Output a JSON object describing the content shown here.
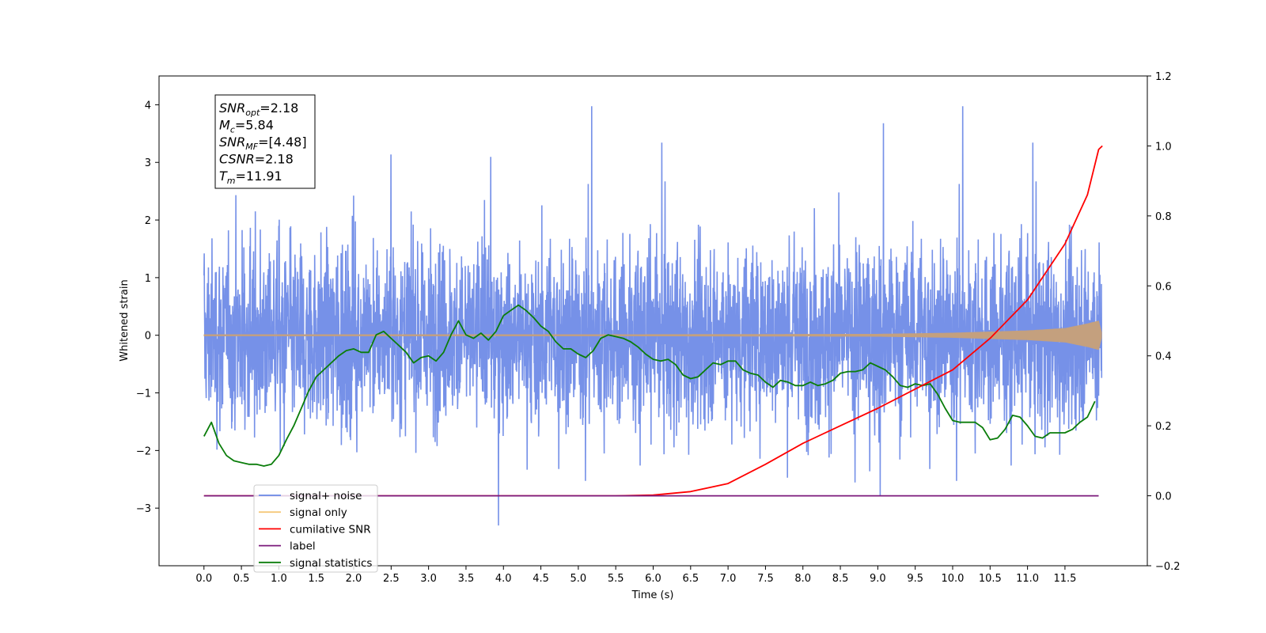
{
  "chart_data": {
    "type": "line",
    "xlabel": "Time (s)",
    "ylabel": "Whitened strain",
    "xlim": [
      -0.6,
      12.6
    ],
    "ylim": [
      -4.0,
      4.5
    ],
    "y2lim": [
      -0.2,
      1.2
    ],
    "x_ticks": [
      "0.0",
      "0.5",
      "1.0",
      "1.5",
      "2.0",
      "2.5",
      "3.0",
      "3.5",
      "4.0",
      "4.5",
      "5.0",
      "5.5",
      "6.0",
      "6.5",
      "7.0",
      "7.5",
      "8.0",
      "8.5",
      "9.0",
      "9.5",
      "10.0",
      "10.5",
      "11.0",
      "11.5"
    ],
    "y_ticks": [
      "−3",
      "−2",
      "−1",
      "0",
      "1",
      "2",
      "3",
      "4"
    ],
    "y2_ticks": [
      "−0.2",
      "0.0",
      "0.2",
      "0.4",
      "0.6",
      "0.8",
      "1.0",
      "1.2"
    ],
    "legend_position": "lower-left",
    "grid": false,
    "series": [
      {
        "name": "signal+ noise",
        "axis": "left",
        "color": "#6a88e6",
        "note_values": "dense noise roughly within [-2.3, 2.3] with spikes up to 4.1 and down to -3.6 over t=0..11.99"
      },
      {
        "name": "signal only",
        "axis": "left",
        "color": "#f5c87a",
        "x": [
          0,
          9.0,
          10.0,
          11.0,
          11.5,
          11.8,
          11.95,
          12.0
        ],
        "envelope": [
          0.0,
          0.02,
          0.04,
          0.08,
          0.12,
          0.2,
          0.25,
          0.0
        ]
      },
      {
        "name": "cumilative SNR",
        "axis": "right",
        "color": "#ff0000",
        "x": [
          0,
          5.5,
          6.0,
          6.5,
          7.0,
          7.5,
          8.0,
          8.5,
          9.0,
          9.5,
          10.0,
          10.5,
          11.0,
          11.5,
          11.8,
          11.95,
          12.0
        ],
        "values": [
          0,
          0,
          0.002,
          0.012,
          0.035,
          0.09,
          0.15,
          0.2,
          0.25,
          0.305,
          0.36,
          0.45,
          0.56,
          0.72,
          0.86,
          0.99,
          1.0
        ]
      },
      {
        "name": "label",
        "axis": "right",
        "color": "#7b1a7b",
        "x": [
          0,
          11.95
        ],
        "values": [
          0,
          0
        ]
      },
      {
        "name": "signal statistics",
        "axis": "right",
        "color": "#0a7d0a",
        "x": [
          0,
          0.1,
          0.2,
          0.3,
          0.4,
          0.5,
          0.6,
          0.7,
          0.8,
          0.9,
          1.0,
          1.1,
          1.2,
          1.3,
          1.4,
          1.5,
          1.6,
          1.7,
          1.8,
          1.9,
          2.0,
          2.1,
          2.2,
          2.3,
          2.4,
          2.5,
          2.6,
          2.7,
          2.8,
          2.9,
          3.0,
          3.1,
          3.2,
          3.3,
          3.4,
          3.5,
          3.6,
          3.7,
          3.8,
          3.9,
          4.0,
          4.1,
          4.2,
          4.3,
          4.4,
          4.5,
          4.6,
          4.7,
          4.8,
          4.9,
          5.0,
          5.1,
          5.2,
          5.3,
          5.4,
          5.5,
          5.6,
          5.7,
          5.8,
          5.9,
          6.0,
          6.1,
          6.2,
          6.3,
          6.4,
          6.5,
          6.6,
          6.7,
          6.8,
          6.9,
          7.0,
          7.1,
          7.2,
          7.3,
          7.4,
          7.5,
          7.6,
          7.7,
          7.8,
          7.9,
          8.0,
          8.1,
          8.2,
          8.3,
          8.4,
          8.5,
          8.6,
          8.7,
          8.8,
          8.9,
          9.0,
          9.1,
          9.2,
          9.3,
          9.4,
          9.5,
          9.6,
          9.7,
          9.8,
          9.9,
          10.0,
          10.1,
          10.2,
          10.3,
          10.4,
          10.5,
          10.6,
          10.7,
          10.8,
          10.9,
          11.0,
          11.1,
          11.2,
          11.3,
          11.4,
          11.5,
          11.6,
          11.7,
          11.8,
          11.9
        ],
        "values": [
          0.17,
          0.21,
          0.15,
          0.115,
          0.1,
          0.095,
          0.09,
          0.09,
          0.085,
          0.09,
          0.115,
          0.16,
          0.2,
          0.25,
          0.3,
          0.34,
          0.36,
          0.38,
          0.4,
          0.415,
          0.42,
          0.41,
          0.41,
          0.46,
          0.47,
          0.45,
          0.43,
          0.41,
          0.38,
          0.395,
          0.4,
          0.385,
          0.41,
          0.46,
          0.5,
          0.46,
          0.45,
          0.465,
          0.445,
          0.47,
          0.515,
          0.53,
          0.545,
          0.53,
          0.51,
          0.485,
          0.47,
          0.44,
          0.42,
          0.42,
          0.405,
          0.395,
          0.415,
          0.45,
          0.46,
          0.455,
          0.45,
          0.44,
          0.425,
          0.405,
          0.39,
          0.385,
          0.39,
          0.375,
          0.345,
          0.335,
          0.34,
          0.36,
          0.38,
          0.375,
          0.385,
          0.385,
          0.36,
          0.35,
          0.345,
          0.325,
          0.31,
          0.33,
          0.325,
          0.315,
          0.315,
          0.325,
          0.315,
          0.32,
          0.33,
          0.35,
          0.355,
          0.355,
          0.36,
          0.38,
          0.37,
          0.36,
          0.34,
          0.315,
          0.31,
          0.32,
          0.315,
          0.32,
          0.29,
          0.25,
          0.215,
          0.21,
          0.21,
          0.21,
          0.195,
          0.16,
          0.165,
          0.19,
          0.23,
          0.225,
          0.2,
          0.17,
          0.165,
          0.18,
          0.18,
          0.18,
          0.19,
          0.21,
          0.225,
          0.27
        ]
      }
    ],
    "annotation": [
      {
        "sym": "SNR",
        "sub": "opt",
        "value": "=2.18"
      },
      {
        "sym": "M",
        "sub": "c",
        "value": "=5.84"
      },
      {
        "sym": "SNR",
        "sub": "MF",
        "value": "=[4.48]"
      },
      {
        "sym": "CSNR",
        "sub": "",
        "value": "=2.18"
      },
      {
        "sym": "T",
        "sub": "m",
        "value": "=11.91"
      }
    ]
  }
}
